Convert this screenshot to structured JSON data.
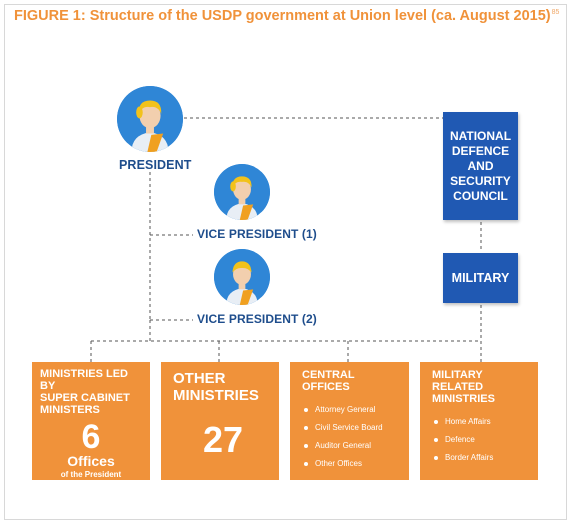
{
  "figure": {
    "title": "FIGURE 1: Structure of the USDP government at Union level (ca. August 2015)",
    "footnote_ref": "85"
  },
  "people": {
    "president": "PRESIDENT",
    "vice_president_1": "VICE PRESIDENT (1)",
    "vice_president_2": "VICE PRESIDENT (2)"
  },
  "council": {
    "lines": [
      "NATIONAL",
      "DEFENCE",
      "AND",
      "SECURITY",
      "COUNCIL"
    ]
  },
  "military": "MILITARY",
  "boxes": {
    "super_cabinet": {
      "title_lines": [
        "MINISTRIES LED BY",
        "SUPER CABINET",
        "MINISTERS"
      ],
      "number": "6",
      "label": "Offices",
      "sublabel": "of the President"
    },
    "other_ministries": {
      "title_lines": [
        "OTHER",
        "MINISTRIES"
      ],
      "number": "27"
    },
    "central_offices": {
      "title": "CENTRAL OFFICES",
      "items": [
        "Attorney General",
        "Civil Service Board",
        "Auditor General",
        "Other Offices"
      ]
    },
    "military_related": {
      "title_lines": [
        "MILITARY RELATED",
        "MINISTRIES"
      ],
      "items": [
        "Home Affairs",
        "Defence",
        "Border Affairs"
      ]
    }
  },
  "colors": {
    "orange": "#f0923a",
    "navy_box": "#2059b3",
    "label_blue": "#1e4d8c",
    "avatar_blue": "#2f86d6",
    "connector": "#555555"
  }
}
